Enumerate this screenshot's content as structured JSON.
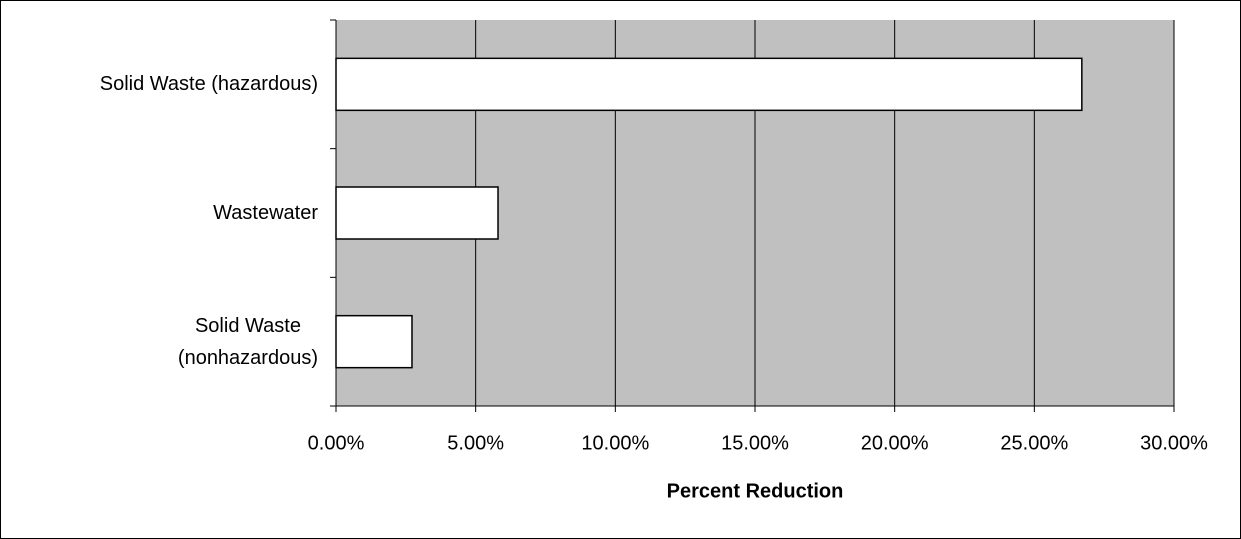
{
  "chart_data": {
    "type": "bar",
    "orientation": "horizontal",
    "x_label": "Percent Reduction",
    "categories": [
      "Solid Waste (hazardous)",
      "Wastewater",
      "Solid Waste\n(nonhazardous)"
    ],
    "values": [
      26.7,
      5.8,
      2.72
    ],
    "color": "#ffffff",
    "xlim": [
      0,
      30
    ],
    "xticks": [
      {
        "value": 0,
        "label": "0.00%"
      },
      {
        "value": 5,
        "label": "5.00%"
      },
      {
        "value": 10,
        "label": "10.00%"
      },
      {
        "value": 15,
        "label": "15.00%"
      },
      {
        "value": 20,
        "label": "20.00%"
      },
      {
        "value": 25,
        "label": "25.00%"
      },
      {
        "value": 30,
        "label": "30.00%"
      }
    ],
    "grid": true
  }
}
